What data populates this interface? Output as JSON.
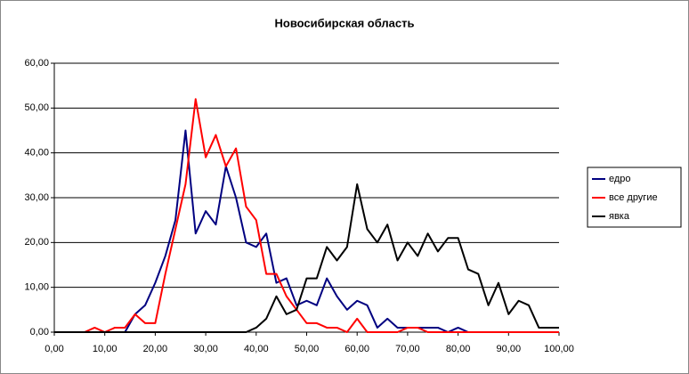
{
  "chart_data": {
    "type": "line",
    "title": "Новосибирская область",
    "x": [
      0,
      2,
      4,
      6,
      8,
      10,
      12,
      14,
      16,
      18,
      20,
      22,
      24,
      26,
      28,
      30,
      32,
      34,
      36,
      38,
      40,
      42,
      44,
      46,
      48,
      50,
      52,
      54,
      56,
      58,
      60,
      62,
      64,
      66,
      68,
      70,
      72,
      74,
      76,
      78,
      80,
      82,
      84,
      86,
      88,
      90,
      92,
      94,
      96,
      98,
      100
    ],
    "series": [
      {
        "name": "едро",
        "color": "#000080",
        "values": [
          0,
          0,
          0,
          0,
          0,
          0,
          0,
          0,
          4,
          6,
          11,
          17,
          25,
          45,
          22,
          27,
          24,
          37,
          30,
          20,
          19,
          22,
          11,
          12,
          6,
          7,
          6,
          12,
          8,
          5,
          7,
          6,
          1,
          3,
          1,
          1,
          1,
          1,
          1,
          0,
          1,
          0,
          0,
          0,
          0,
          0,
          0,
          0,
          0,
          0,
          0
        ]
      },
      {
        "name": "все другие",
        "color": "#ff0000",
        "values": [
          0,
          0,
          0,
          0,
          1,
          0,
          1,
          1,
          4,
          2,
          2,
          13,
          23,
          33,
          52,
          39,
          44,
          37,
          41,
          28,
          25,
          13,
          13,
          8,
          5,
          2,
          2,
          1,
          1,
          0,
          3,
          0,
          0,
          0,
          0,
          1,
          1,
          0,
          0,
          0,
          0,
          0,
          0,
          0,
          0,
          0,
          0,
          0,
          0,
          0,
          0
        ]
      },
      {
        "name": "явка",
        "color": "#000000",
        "values": [
          0,
          0,
          0,
          0,
          0,
          0,
          0,
          0,
          0,
          0,
          0,
          0,
          0,
          0,
          0,
          0,
          0,
          0,
          0,
          0,
          1,
          3,
          8,
          4,
          5,
          12,
          12,
          19,
          16,
          19,
          33,
          23,
          20,
          24,
          16,
          20,
          17,
          22,
          18,
          21,
          21,
          14,
          13,
          6,
          11,
          4,
          7,
          6,
          1,
          1,
          1
        ]
      }
    ],
    "xlim": [
      0,
      100
    ],
    "xticks": [
      {
        "value": 0,
        "label": "0,00"
      },
      {
        "value": 10,
        "label": "10,00"
      },
      {
        "value": 20,
        "label": "20,00"
      },
      {
        "value": 30,
        "label": "30,00"
      },
      {
        "value": 40,
        "label": "40,00"
      },
      {
        "value": 50,
        "label": "50,00"
      },
      {
        "value": 60,
        "label": "60,00"
      },
      {
        "value": 70,
        "label": "70,00"
      },
      {
        "value": 80,
        "label": "80,00"
      },
      {
        "value": 90,
        "label": "90,00"
      },
      {
        "value": 100,
        "label": "100,00"
      }
    ],
    "ylim": [
      0,
      60
    ],
    "yticks": [
      {
        "value": 0,
        "label": "0,00"
      },
      {
        "value": 10,
        "label": "10,00"
      },
      {
        "value": 20,
        "label": "20,00"
      },
      {
        "value": 30,
        "label": "30,00"
      },
      {
        "value": 40,
        "label": "40,00"
      },
      {
        "value": 50,
        "label": "50,00"
      },
      {
        "value": 60,
        "label": "60,00"
      }
    ],
    "grid": true,
    "legend": "right"
  }
}
